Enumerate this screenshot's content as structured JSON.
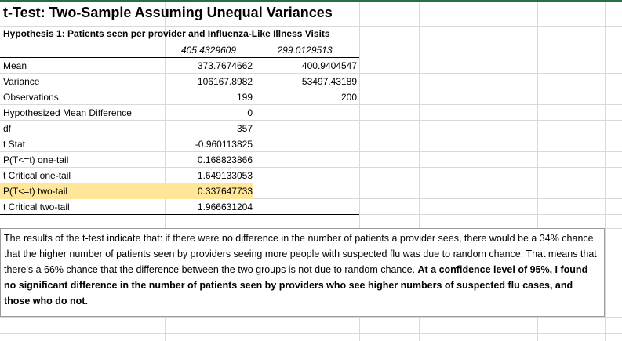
{
  "title": "t-Test: Two-Sample Assuming Unequal Variances",
  "subtitle": "Hypothesis 1: Patients seen per provider and Influenza-Like Illness Visits",
  "columns": [
    "405.4329609",
    "299.0129513"
  ],
  "rows": [
    {
      "label": "Mean",
      "v1": "373.7674662",
      "v2": "400.9404547"
    },
    {
      "label": "Variance",
      "v1": "106167.8982",
      "v2": "53497.43189"
    },
    {
      "label": "Observations",
      "v1": "199",
      "v2": "200"
    },
    {
      "label": "Hypothesized Mean Difference",
      "v1": "0",
      "v2": ""
    },
    {
      "label": "df",
      "v1": "357",
      "v2": ""
    },
    {
      "label": "t Stat",
      "v1": "-0.960113825",
      "v2": ""
    },
    {
      "label": "P(T<=t) one-tail",
      "v1": "0.168823866",
      "v2": ""
    },
    {
      "label": "t Critical one-tail",
      "v1": "1.649133053",
      "v2": ""
    },
    {
      "label": "P(T<=t) two-tail",
      "v1": "0.337647733",
      "v2": "",
      "highlight": true
    },
    {
      "label": "t Critical two-tail",
      "v1": "1.966631204",
      "v2": ""
    }
  ],
  "notes": {
    "text": "The results of the t-test indicate that: if there were no difference in the number of patients a provider sees, there would be a 34% chance that the higher number of patients seen by providers seeing more people with suspected flu was due to random chance.  That means that there's a 66% chance that the difference between the two groups is not due to random chance. ",
    "bold": "At a confidence level of 95%, I found no significant difference in the number of patients seen by providers who see higher numbers of suspected flu cases, and those who do not."
  },
  "colors": {
    "highlight": "#ffe699",
    "gridline": "#d9d9d9",
    "border": "#9a9a9a"
  }
}
